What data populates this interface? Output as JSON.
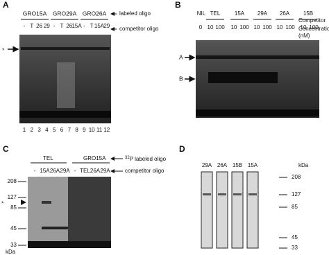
{
  "panel_a": {
    "letter": "A",
    "groups": [
      "GRO15A",
      "GRO29A",
      "GRO26A"
    ],
    "lanes": [
      "-",
      "T",
      "26",
      "29",
      "-",
      "T",
      "26",
      "15A",
      "-",
      "T",
      "15A",
      "29"
    ],
    "lane_numbers": [
      "1",
      "2",
      "3",
      "4",
      "5",
      "6",
      "7",
      "8",
      "9",
      "10",
      "11",
      "12"
    ],
    "labels": [
      "labeled oligo",
      "competitor oligo"
    ],
    "marker": "*"
  },
  "panel_b": {
    "letter": "B",
    "lanes": [
      "NIL",
      "TEL",
      "15A",
      "29A",
      "26A",
      "15B"
    ],
    "concentrations": [
      "0",
      "10",
      "100",
      "10",
      "100",
      "10",
      "100",
      "10",
      "100",
      "10",
      "100"
    ],
    "labels": [
      "Competitor",
      "Concentration",
      "(nM)"
    ],
    "bands": [
      "A",
      "B"
    ]
  },
  "panel_c": {
    "letter": "C",
    "groups": [
      "TEL",
      "GRO15A"
    ],
    "lanes": [
      "-",
      "15A",
      "26A",
      "29A",
      "-",
      "TEL",
      "26A",
      "29A"
    ],
    "label_superscript": "32",
    "labels": [
      "P labeled oligo",
      "competitor oligo"
    ],
    "marker": "*",
    "markers": [
      "208",
      "127",
      "85",
      "45",
      "33"
    ],
    "unit": "kDa"
  },
  "panel_d": {
    "letter": "D",
    "lanes": [
      "29A",
      "26A",
      "15B",
      "15A"
    ],
    "markers": [
      "208",
      "127",
      "85",
      "45",
      "33"
    ],
    "unit": "kDa"
  }
}
